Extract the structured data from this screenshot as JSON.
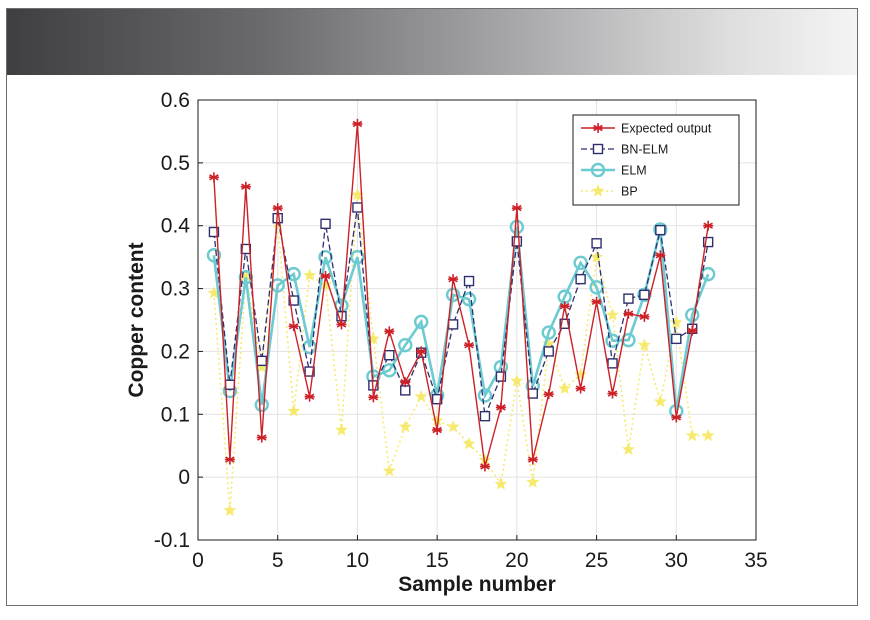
{
  "chart_data": {
    "type": "line",
    "title": "",
    "xlabel": "Sample number",
    "ylabel": "Copper content",
    "xlim": [
      0,
      35
    ],
    "ylim": [
      -0.1,
      0.6
    ],
    "xticks": [
      "0",
      "5",
      "10",
      "15",
      "20",
      "25",
      "30",
      "35"
    ],
    "yticks": [
      "-0.1",
      "0",
      "0.1",
      "0.2",
      "0.3",
      "0.4",
      "0.5",
      "0.6"
    ],
    "grid": true,
    "legend_position": "top-right",
    "x": [
      1,
      2,
      3,
      4,
      5,
      6,
      7,
      8,
      9,
      10,
      11,
      12,
      13,
      14,
      15,
      16,
      17,
      18,
      19,
      20,
      21,
      22,
      23,
      24,
      25,
      26,
      27,
      28,
      29,
      30,
      31,
      32
    ],
    "series": [
      {
        "name": "Expected output",
        "color": "#cc2127",
        "marker": "asterisk",
        "dash": "solid",
        "values": [
          0.477,
          0.028,
          0.462,
          0.063,
          0.428,
          0.24,
          0.128,
          0.32,
          0.243,
          0.562,
          0.127,
          0.232,
          0.151,
          0.2,
          0.075,
          0.315,
          0.21,
          0.017,
          0.111,
          0.428,
          0.028,
          0.132,
          0.272,
          0.141,
          0.279,
          0.133,
          0.26,
          0.255,
          0.353,
          0.095,
          0.233,
          0.4
        ]
      },
      {
        "name": "BN-ELM",
        "color": "#2e2f6e",
        "marker": "square",
        "dash": "dashed",
        "values": [
          0.39,
          0.147,
          0.363,
          0.185,
          0.412,
          0.281,
          0.168,
          0.403,
          0.256,
          0.429,
          0.146,
          0.194,
          0.138,
          0.198,
          0.124,
          0.243,
          0.312,
          0.097,
          0.16,
          0.375,
          0.133,
          0.2,
          0.244,
          0.315,
          0.372,
          0.181,
          0.284,
          0.29,
          0.393,
          0.22,
          0.236,
          0.374
        ]
      },
      {
        "name": "ELM",
        "color": "#6ccbd0",
        "marker": "circle",
        "dash": "solid",
        "values": [
          0.353,
          0.137,
          0.318,
          0.115,
          0.305,
          0.323,
          0.207,
          0.35,
          0.273,
          0.35,
          0.16,
          0.17,
          0.21,
          0.247,
          0.13,
          0.29,
          0.283,
          0.13,
          0.175,
          0.398,
          0.145,
          0.23,
          0.287,
          0.341,
          0.302,
          0.217,
          0.218,
          0.29,
          0.394,
          0.105,
          0.258,
          0.323
        ]
      },
      {
        "name": "BP",
        "color": "#f6ea6e",
        "marker": "star",
        "dash": "dotted",
        "values": [
          0.293,
          -0.053,
          0.32,
          0.175,
          0.405,
          0.105,
          0.321,
          0.306,
          0.075,
          0.449,
          0.22,
          0.01,
          0.08,
          0.128,
          0.09,
          0.08,
          0.053,
          0.027,
          -0.011,
          0.153,
          -0.008,
          0.212,
          0.141,
          0.163,
          0.35,
          0.258,
          0.044,
          0.21,
          0.12,
          0.246,
          0.066,
          0.066
        ]
      }
    ]
  }
}
